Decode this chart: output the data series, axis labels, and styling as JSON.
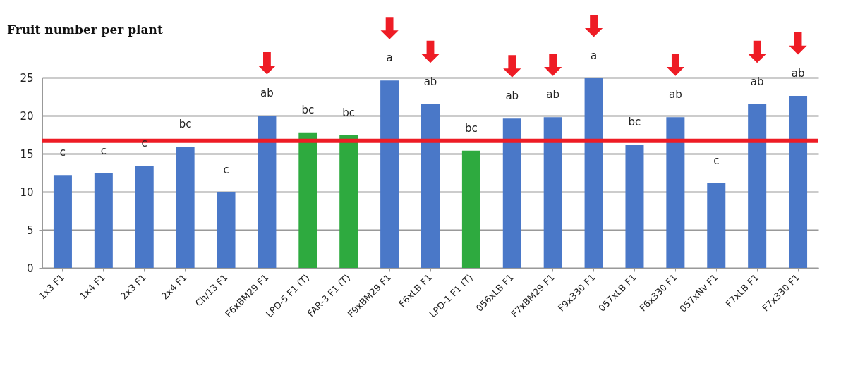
{
  "chart_data": {
    "type": "bar",
    "title": "Fruit number per plant",
    "categories": [
      "1x3 F1",
      "1x4 F1",
      "2x3 F1",
      "2x4 F1",
      "Ch/13 F1",
      "F6xBM29 F1",
      "LPD-5 F1 (T)",
      "FAR-3 F1 (T)",
      "F9xBM29 F1",
      "F6xLB F1",
      "LPD-1 F1 (T)",
      "056xLB F1",
      "F7xBM29 F1",
      "F9x330 F1",
      "057xLB F1",
      "F6x330 F1",
      "057xNv F1",
      "F7xLB F1",
      "F7x330 F1"
    ],
    "values": [
      12.2,
      12.4,
      13.4,
      15.9,
      9.9,
      20,
      17.8,
      17.4,
      24.6,
      21.5,
      15.4,
      19.6,
      19.8,
      24.9,
      16.2,
      19.8,
      11.1,
      21.5,
      22.6
    ],
    "colors": [
      "#4a78c8",
      "#4a78c8",
      "#4a78c8",
      "#4a78c8",
      "#4a78c8",
      "#4a78c8",
      "#2eaa3f",
      "#2eaa3f",
      "#4a78c8",
      "#4a78c8",
      "#2eaa3f",
      "#4a78c8",
      "#4a78c8",
      "#4a78c8",
      "#4a78c8",
      "#4a78c8",
      "#4a78c8",
      "#4a78c8",
      "#4a78c8"
    ],
    "ylim": [
      0,
      25
    ],
    "yticks": [
      0,
      5,
      10,
      15,
      20,
      25
    ],
    "grid": "y",
    "ref_lines": [
      {
        "axis": "y",
        "value": 16.7,
        "color": "#ee1c25"
      }
    ],
    "annotations": [
      {
        "text": "c",
        "x": "1x3 F1",
        "y": 12.2
      },
      {
        "text": "c",
        "x": "1x4 F1",
        "y": 12.4
      },
      {
        "text": "c",
        "x": "2x3 F1",
        "y": 13.4
      },
      {
        "text": "bc",
        "x": "2x4 F1",
        "y": 15.9
      },
      {
        "text": "c",
        "x": "Ch/13 F1",
        "y": 9.9
      },
      {
        "text": "ab",
        "x": "F6xBM29 F1",
        "y": 20
      },
      {
        "text": "bc",
        "x": "LPD-5 F1 (T)",
        "y": 17.8
      },
      {
        "text": "bc",
        "x": "FAR-3 F1 (T)",
        "y": 17.4
      },
      {
        "text": "a",
        "x": "F9xBM29 F1",
        "y": 24.6
      },
      {
        "text": "ab",
        "x": "F6xLB F1",
        "y": 21.5
      },
      {
        "text": "bc",
        "x": "LPD-1 F1 (T)",
        "y": 15.4
      },
      {
        "text": "ab",
        "x": "056xLB F1",
        "y": 19.6
      },
      {
        "text": "ab",
        "x": "F7xBM29 F1",
        "y": 19.8
      },
      {
        "text": "a",
        "x": "F9x330 F1",
        "y": 24.9
      },
      {
        "text": "bc",
        "x": "057xLB F1",
        "y": 16.2
      },
      {
        "text": "ab",
        "x": "F6x330 F1",
        "y": 19.8
      },
      {
        "text": "c",
        "x": "057xNv F1",
        "y": 11.1
      },
      {
        "text": "ab",
        "x": "F7xLB F1",
        "y": 21.5
      },
      {
        "text": "ab",
        "x": "F7x330 F1",
        "y": 22.6
      }
    ]
  }
}
